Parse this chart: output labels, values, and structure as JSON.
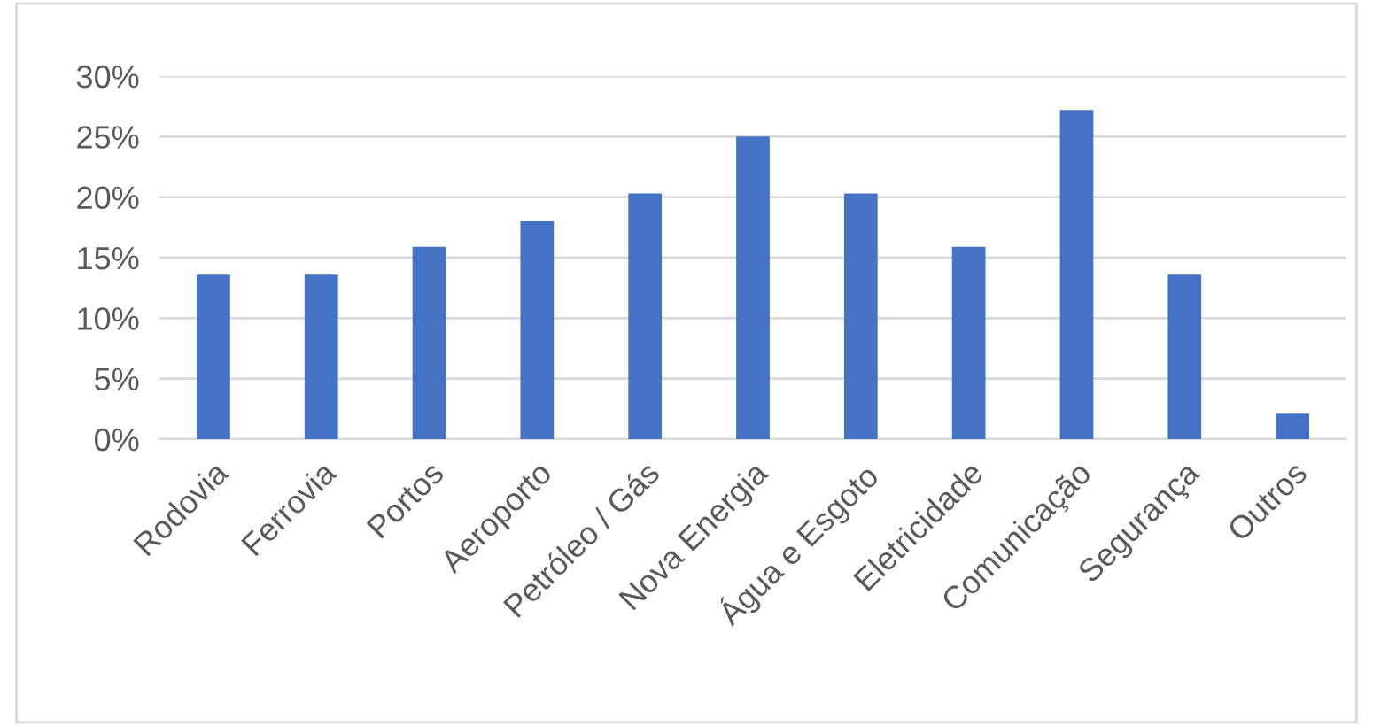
{
  "chart_data": {
    "type": "bar",
    "categories": [
      "Rodovia",
      "Ferrovia",
      "Portos",
      "Aeroporto",
      "Petróleo / Gás",
      "Nova Energia",
      "Água e Esgoto",
      "Eletricidade",
      "Comunicação",
      "Segurança",
      "Outros"
    ],
    "values": [
      13.6,
      13.6,
      15.9,
      18.0,
      20.3,
      25.0,
      20.3,
      15.9,
      27.2,
      13.6,
      2.1
    ],
    "color": "#4472c4",
    "ylim": [
      0,
      30
    ],
    "yticks": [
      {
        "value": 0,
        "label": "0%"
      },
      {
        "value": 5,
        "label": "5%"
      },
      {
        "value": 10,
        "label": "10%"
      },
      {
        "value": 15,
        "label": "15%"
      },
      {
        "value": 20,
        "label": "20%"
      },
      {
        "value": 25,
        "label": "25%"
      },
      {
        "value": 30,
        "label": "30%"
      }
    ],
    "grid": "y"
  }
}
